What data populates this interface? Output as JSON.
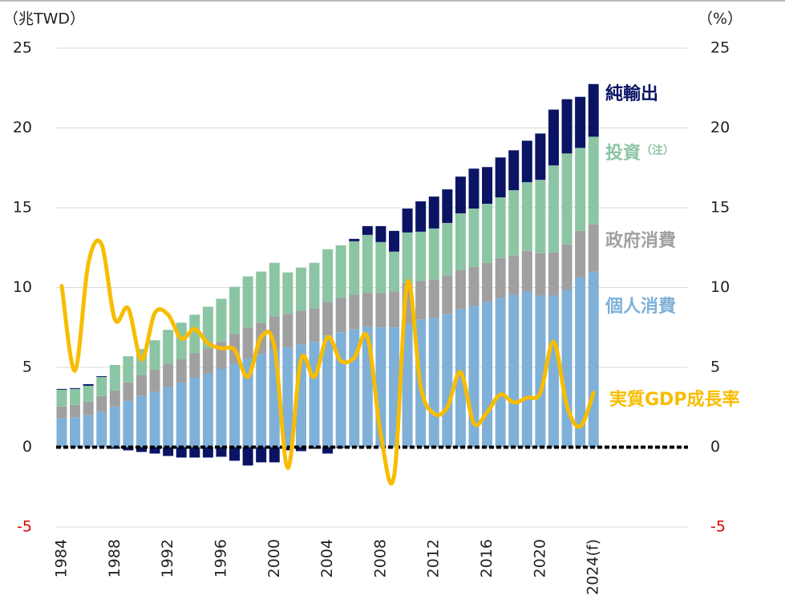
{
  "chart_data": {
    "type": "bar",
    "y_axis_label": "（兆TWD）",
    "y2_axis_label": "（%）",
    "stacked": true,
    "categories": [
      "1984",
      null,
      null,
      null,
      "1988",
      null,
      null,
      null,
      "1992",
      null,
      null,
      null,
      "1996",
      null,
      null,
      null,
      "2000",
      null,
      null,
      null,
      "2004",
      null,
      null,
      null,
      "2008",
      null,
      null,
      null,
      "2012",
      null,
      null,
      null,
      "2016",
      null,
      null,
      null,
      "2020",
      null,
      null,
      null,
      "2024(f)"
    ],
    "series": [
      {
        "name": "個人消費",
        "color": "#7fb0d8",
        "values": [
          1.8,
          1.85,
          2.0,
          2.2,
          2.55,
          2.9,
          3.2,
          3.45,
          3.75,
          4.05,
          4.35,
          4.6,
          4.9,
          5.25,
          5.55,
          5.85,
          6.1,
          6.25,
          6.45,
          6.6,
          7.0,
          7.2,
          7.4,
          7.55,
          7.5,
          7.5,
          7.7,
          8.0,
          8.1,
          8.35,
          8.65,
          8.85,
          9.1,
          9.35,
          9.55,
          9.75,
          9.5,
          9.5,
          9.85,
          10.65,
          11.0
        ]
      },
      {
        "name": "政府消費",
        "color": "#a0a0a0",
        "values": [
          0.75,
          0.8,
          0.85,
          1.0,
          1.0,
          1.15,
          1.3,
          1.4,
          1.45,
          1.45,
          1.55,
          1.6,
          1.7,
          1.85,
          1.95,
          1.95,
          2.1,
          2.1,
          2.1,
          2.1,
          2.1,
          2.15,
          2.15,
          2.1,
          2.15,
          2.25,
          2.55,
          2.4,
          2.4,
          2.4,
          2.45,
          2.45,
          2.45,
          2.5,
          2.45,
          2.55,
          2.65,
          2.7,
          2.85,
          2.9,
          2.95
        ]
      },
      {
        "name": "投資",
        "note": "（注）",
        "color": "#8cc5a4",
        "values": [
          1.05,
          1.0,
          1.0,
          1.2,
          1.6,
          1.65,
          1.65,
          1.85,
          2.15,
          2.3,
          2.4,
          2.6,
          2.7,
          2.95,
          3.2,
          3.2,
          3.35,
          2.6,
          2.7,
          2.85,
          3.3,
          3.3,
          3.35,
          3.65,
          3.2,
          2.5,
          3.2,
          3.1,
          3.2,
          3.3,
          3.55,
          3.65,
          3.7,
          3.8,
          4.1,
          4.3,
          4.6,
          5.45,
          5.7,
          5.2,
          5.5
        ]
      },
      {
        "name": "純輸出",
        "color": "#0b1464",
        "values": [
          0.05,
          0.05,
          0.1,
          0.05,
          -0.1,
          -0.2,
          -0.3,
          -0.4,
          -0.55,
          -0.65,
          -0.65,
          -0.65,
          -0.6,
          -0.85,
          -1.15,
          -0.95,
          -0.95,
          -0.2,
          -0.25,
          -0.1,
          -0.4,
          -0.05,
          0.15,
          0.55,
          1.0,
          1.3,
          1.5,
          1.9,
          2.0,
          2.1,
          2.3,
          2.5,
          2.3,
          2.5,
          2.5,
          2.6,
          2.9,
          3.5,
          3.4,
          3.2,
          3.3
        ]
      },
      {
        "name": "実質GDP成長率",
        "type": "line",
        "axis": "y2",
        "color": "#f7bd00",
        "values": [
          10.1,
          4.8,
          11.5,
          12.7,
          8.0,
          8.7,
          5.5,
          8.4,
          8.3,
          6.8,
          7.4,
          6.5,
          6.2,
          6.1,
          4.4,
          6.9,
          6.3,
          -1.3,
          5.5,
          4.4,
          6.9,
          5.4,
          5.6,
          6.9,
          0.8,
          -1.8,
          10.3,
          3.8,
          2.1,
          2.5,
          4.7,
          1.5,
          2.2,
          3.3,
          2.8,
          3.1,
          3.4,
          6.6,
          2.6,
          1.3,
          3.4
        ]
      }
    ],
    "ylim": [
      -5,
      25
    ],
    "yticks": [
      -5,
      0,
      5,
      10,
      15,
      20,
      25
    ],
    "y2lim": [
      -5,
      25
    ],
    "y2ticks": [
      -5,
      0,
      5,
      10,
      15,
      20,
      25
    ],
    "negative_tick_color": "#e00000",
    "grid": true
  }
}
